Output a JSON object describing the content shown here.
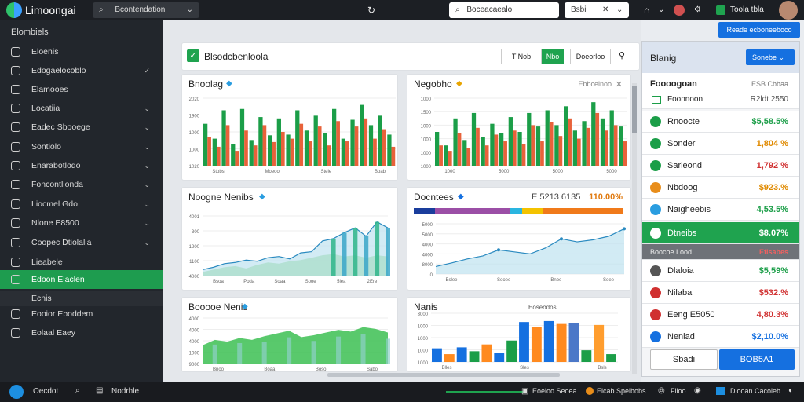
{
  "app": {
    "name": "Limoongai",
    "search_label": "Bcontendation",
    "address": "Boceacaealo",
    "filter_label": "Bsbi",
    "user_label": "Toola tbla",
    "top_button": "Reade ecboneeboco"
  },
  "sidebar": {
    "title": "Elombiels",
    "items": [
      {
        "label": "Eloenis"
      },
      {
        "label": "Edogaelocoblo"
      },
      {
        "label": "Elamooes"
      },
      {
        "label": "Locatiia"
      },
      {
        "label": "Eadec Sbooege"
      },
      {
        "label": "Sontiolo"
      },
      {
        "label": "Enarabotlodo"
      },
      {
        "label": "Foncontlionda"
      },
      {
        "label": "Liocmel Gdo"
      },
      {
        "label": "Nlone E8500"
      },
      {
        "label": "Coopec Dtiolalia"
      },
      {
        "label": "Lieabele"
      },
      {
        "label": "Edoon Elaclen"
      },
      {
        "label": "Ecnis"
      },
      {
        "label": "Eooior Eboddem"
      },
      {
        "label": "Eolaal Eaey"
      }
    ]
  },
  "header": {
    "title": "Blsodcbenloola",
    "btn1": "T Nob",
    "btn2": "Nbo",
    "btn3": "Doeorloo"
  },
  "panels": [
    {
      "title": "Bnoolag",
      "ticks": [
        "2020",
        "1900",
        "1000",
        "1000",
        "1020"
      ],
      "xt": [
        "Stobs",
        "Moeoo",
        "Stele",
        "Boab"
      ]
    },
    {
      "title": "Negobho",
      "extra": "Ebbcelnoo",
      "ticks": [
        "1000",
        "1500",
        "1000",
        "1000",
        "1000",
        "1000"
      ],
      "xt": [
        "1000",
        "5000",
        "5000",
        "5000"
      ]
    },
    {
      "title": "Noogne Nenibs",
      "ticks": [
        "4001",
        "300",
        "1200",
        "1100",
        "4000"
      ],
      "xt": [
        "Bsoa",
        "Poda",
        "Soaa",
        "Sooe",
        "5lea",
        "2Ere"
      ]
    },
    {
      "title": "Docntees",
      "value": "E 5213 6135",
      "value2": "110.00%",
      "ticks": [
        "5000",
        "5000",
        "4000",
        "4000",
        "8000",
        "0"
      ],
      "xt": [
        "Bslee",
        "Sooee",
        "Bnbe",
        "Soee"
      ]
    },
    {
      "title": "Booooe Nenis",
      "ticks": [
        "4000",
        "4000",
        "4000",
        "1000",
        "9000"
      ],
      "xt": [
        "Bnoo",
        "Boaa",
        "Boso",
        "Sabo"
      ]
    },
    {
      "title": "Nanis",
      "legend": "Eoseodos",
      "ticks": [
        "3000",
        "1000",
        "1000",
        "1000",
        "1000"
      ],
      "xt": [
        "Blles",
        "Sles",
        "Bsls"
      ]
    }
  ],
  "right": {
    "title": "Blanig",
    "btn": "Sonebe",
    "section": "Foooogoan",
    "section_val": "ESB Cbbaa",
    "hdr_label": "Foonnoon",
    "hdr_val": "R2ldt 2550",
    "rows": [
      {
        "label": "Rnoocte",
        "value": "$5,58.5%",
        "color": "#1b9e48"
      },
      {
        "label": "Sonder",
        "value": "1,804 %",
        "color": "#e08a00"
      },
      {
        "label": "Sarleond",
        "value": "1,792 %",
        "color": "#d03030"
      },
      {
        "label": "Nbdoog",
        "value": "$923.%",
        "color": "#e08a00"
      },
      {
        "label": "Naigheebis",
        "value": "4,53.5%",
        "color": "#1b9e48"
      },
      {
        "label": "Dtneibs",
        "value": "$8.07%",
        "color": "#ffffff"
      },
      {
        "label": "Dlaloia",
        "value": "$5,59%",
        "color": "#1b9e48"
      },
      {
        "label": "Nilaba",
        "value": "$532.%",
        "color": "#d03030"
      },
      {
        "label": "Eeng E5050",
        "value": "4,80.3%",
        "color": "#d03030"
      },
      {
        "label": "Neniad",
        "value": "$2,10.0%",
        "color": "#1570e0"
      }
    ],
    "gray_label": "Boocoe Lood",
    "gray_val": "Efisabes",
    "btn_left": "Sbadi",
    "btn_right": "BOB5A1"
  },
  "taskbar": {
    "start": "Oecdot",
    "search": "Nodrhle",
    "t1": "Eoeloo Seoea",
    "t2": "Elcab Spelbobs",
    "t3": "Flloo",
    "t4": "Dlooan Cacoleb"
  },
  "chart_data": [
    {
      "type": "bar",
      "series": [
        {
          "name": "green",
          "values": [
            62,
            40,
            82,
            32,
            84,
            38,
            72,
            45,
            70,
            46,
            82,
            52,
            74,
            48,
            84,
            40,
            68,
            90,
            60,
            74,
            46
          ]
        },
        {
          "name": "orange",
          "values": [
            42,
            28,
            60,
            22,
            52,
            30,
            60,
            35,
            50,
            40,
            62,
            36,
            58,
            30,
            66,
            36,
            58,
            70,
            40,
            54,
            28
          ]
        }
      ],
      "ylim": [
        0,
        100
      ]
    },
    {
      "type": "bar",
      "series": [
        {
          "name": "green",
          "values": [
            50,
            30,
            70,
            38,
            78,
            42,
            62,
            48,
            72,
            50,
            78,
            58,
            82,
            60,
            88,
            52,
            66,
            94,
            70,
            82,
            58
          ]
        },
        {
          "name": "orange",
          "values": [
            30,
            22,
            48,
            26,
            56,
            30,
            46,
            36,
            52,
            32,
            60,
            36,
            64,
            44,
            70,
            40,
            56,
            78,
            52,
            60,
            36
          ]
        }
      ],
      "ylim": [
        0,
        100
      ]
    },
    {
      "type": "area",
      "series": [
        {
          "name": "line",
          "values": [
            10,
            14,
            20,
            22,
            26,
            24,
            30,
            32,
            28,
            38,
            40,
            58,
            62,
            72,
            80,
            66,
            90,
            80
          ]
        },
        {
          "name": "area",
          "values": [
            6,
            10,
            14,
            16,
            12,
            18,
            22,
            20,
            24,
            26,
            30,
            34,
            36,
            32,
            34,
            30,
            34,
            32
          ]
        }
      ],
      "ylim": [
        0,
        100
      ]
    },
    {
      "type": "line",
      "values": [
        15,
        22,
        30,
        36,
        48,
        44,
        40,
        52,
        70,
        64,
        68,
        75,
        90
      ],
      "ylim": [
        0,
        100
      ]
    },
    {
      "type": "area",
      "values": [
        40,
        52,
        48,
        56,
        52,
        60,
        66,
        72,
        58,
        62,
        68,
        74,
        70,
        80,
        76,
        68
      ],
      "ylim": [
        0,
        100
      ]
    },
    {
      "type": "bar",
      "values": [
        28,
        16,
        30,
        22,
        36,
        18,
        44,
        82,
        72,
        84,
        78,
        80,
        24,
        76,
        16
      ],
      "colors": [
        "#1570e0",
        "#ff8a1f",
        "#1570e0",
        "#1b9e48",
        "#ff8a1f",
        "#1570e0",
        "#1b9e48",
        "#1570e0",
        "#ff8a1f",
        "#1570e0",
        "#ff8a1f",
        "#4b78c8",
        "#1b9e48",
        "#ff9d2e",
        "#1b9e48"
      ],
      "ylim": [
        0,
        100
      ]
    }
  ]
}
